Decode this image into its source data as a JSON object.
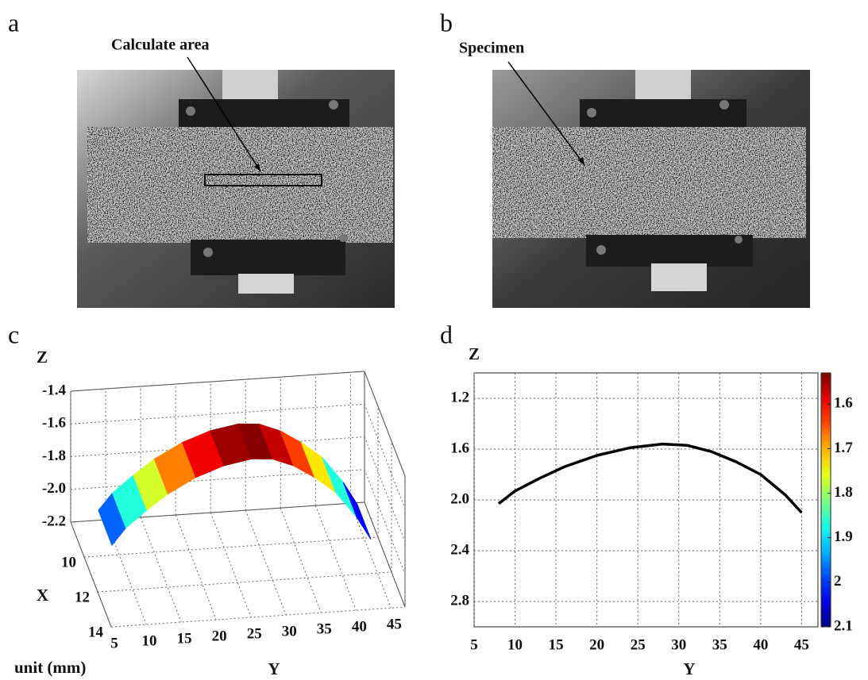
{
  "panel_labels": [
    "a",
    "b",
    "c",
    "d"
  ],
  "photo_annotations": [
    "Calculate area",
    "Specimen"
  ],
  "chart_data": [
    {
      "type": "surface3d",
      "z_label": "Z",
      "depth_label": "X",
      "x_label": "Y",
      "unit_label": "unit (mm)",
      "x": [
        8,
        10,
        13,
        16,
        20,
        24,
        28,
        31,
        34,
        37,
        40,
        43,
        45
      ],
      "values": [
        -2.03,
        -1.93,
        -1.83,
        -1.74,
        -1.65,
        -1.59,
        -1.56,
        -1.57,
        -1.62,
        -1.7,
        -1.8,
        -1.96,
        -2.1
      ],
      "depth": [
        9,
        11
      ],
      "xlim": [
        5,
        47
      ],
      "xticks": [
        5,
        10,
        15,
        20,
        25,
        30,
        35,
        40,
        45
      ],
      "depth_lim": [
        8,
        14
      ],
      "depth_ticks": [
        10,
        12,
        14
      ],
      "zlim": [
        -2.2,
        -1.4
      ],
      "zticks": [
        -1.4,
        -1.6,
        -1.8,
        {
          "value": -2,
          "label": "-2.0"
        },
        -2.2
      ],
      "colormap": "jet",
      "grid": true
    },
    {
      "type": "line",
      "y_label": "Z",
      "x_label": "Y",
      "x": [
        8,
        10,
        13,
        16,
        20,
        24,
        28,
        31,
        34,
        37,
        40,
        43,
        45
      ],
      "values": [
        2.03,
        1.93,
        1.83,
        1.74,
        1.65,
        1.59,
        1.56,
        1.57,
        1.62,
        1.7,
        1.8,
        1.96,
        2.1
      ],
      "color": "#000000",
      "xlim": [
        5,
        47
      ],
      "xticks": [
        5,
        10,
        15,
        20,
        25,
        30,
        35,
        40,
        45
      ],
      "ylim": [
        3,
        1
      ],
      "yticks": [
        1.2,
        1.6,
        {
          "value": 2,
          "label": "2.0"
        },
        2.4,
        2.8
      ],
      "grid": true,
      "colorbar": {
        "lim": [
          2.1,
          1.53
        ],
        "ticks": [
          1.6,
          1.7,
          1.8,
          1.9,
          2,
          2.1
        ],
        "colormap": "jet"
      }
    }
  ]
}
